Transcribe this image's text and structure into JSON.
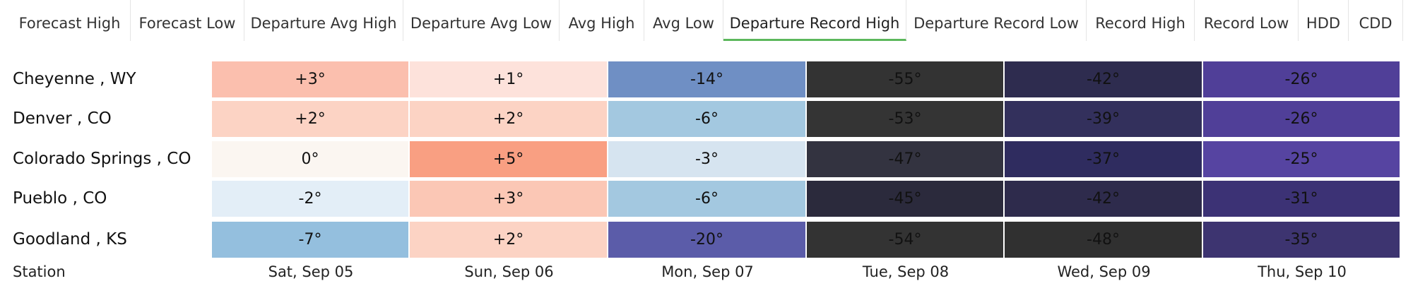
{
  "tabs": {
    "items": [
      "Forecast High",
      "Forecast Low",
      "Departure Avg High",
      "Departure Avg Low",
      "Avg High",
      "Avg Low",
      "Departure Record High",
      "Departure Record Low",
      "Record High",
      "Record Low",
      "HDD",
      "CDD"
    ],
    "active": 6,
    "active_color": "#5cb85c"
  },
  "table": {
    "footer": [
      "Station",
      "Sat, Sep 05",
      "Sun, Sep 06",
      "Mon, Sep 07",
      "Tue, Sep 08",
      "Wed, Sep 09",
      "Thu, Sep 10"
    ],
    "rows": [
      [
        "Cheyenne , WY",
        "+3°",
        "+1°",
        "-14°",
        "-55°",
        "-42°",
        "-26°"
      ],
      [
        "Denver , CO",
        "+2°",
        "+2°",
        "-6°",
        "-53°",
        "-39°",
        "-26°"
      ],
      [
        "Colorado Springs , CO",
        "0°",
        "+5°",
        "-3°",
        "-47°",
        "-37°",
        "-25°"
      ],
      [
        "Pueblo , CO",
        "-2°",
        "+3°",
        "-6°",
        "-45°",
        "-42°",
        "-31°"
      ],
      [
        "Goodland , KS",
        "-7°",
        "+2°",
        "-20°",
        "-54°",
        "-48°",
        "-35°"
      ]
    ],
    "colors": [
      [
        "#fbbfae",
        "#fde2db",
        "#6f8fc4",
        "#333333",
        "#2e2c4f",
        "#503f98"
      ],
      [
        "#fcd3c4",
        "#fcd3c4",
        "#a3c8e0",
        "#343434",
        "#33305c",
        "#503f98"
      ],
      [
        "#fbf6f1",
        "#f99f82",
        "#d6e4f0",
        "#333340",
        "#2f2c5f",
        "#5644a1"
      ],
      [
        "#e3eef7",
        "#fbc7b5",
        "#a3c8e0",
        "#2b2a3c",
        "#2e2b4c",
        "#3c3275"
      ],
      [
        "#94bfde",
        "#fcd3c4",
        "#5b5ca9",
        "#333333",
        "#303030",
        "#3d3470"
      ]
    ]
  }
}
